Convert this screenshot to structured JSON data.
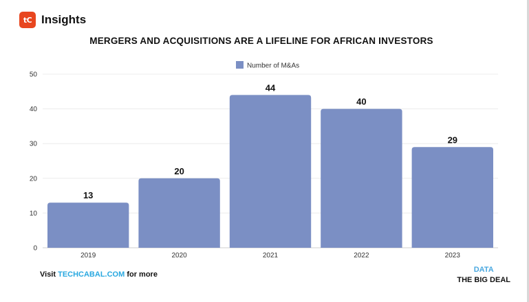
{
  "brand": {
    "logo_text": "tC",
    "name": "Insights"
  },
  "chart_data": {
    "type": "bar",
    "title": "MERGERS AND ACQUISITIONS ARE A LIFELINE FOR AFRICAN INVESTORS",
    "categories": [
      "2019",
      "2020",
      "2021",
      "2022",
      "2023"
    ],
    "series": [
      {
        "name": "Number of M&As",
        "values": [
          13,
          20,
          44,
          40,
          29
        ]
      }
    ],
    "xlabel": "",
    "ylabel": "",
    "ylim": [
      0,
      50
    ],
    "yticks": [
      0,
      10,
      20,
      30,
      40,
      50
    ],
    "grid": true,
    "legend_position": "top-center",
    "data_labels": true,
    "bar_color": "#7b8fc4"
  },
  "footer": {
    "visit_prefix": "Visit ",
    "link_text": "TECHCABAL.COM",
    "visit_suffix": " for more",
    "source_line1": "DATA",
    "source_line2": "THE BIG DEAL"
  },
  "colors": {
    "brand": "#e8461f",
    "link": "#29a8e0",
    "bar": "#7b8fc4"
  }
}
